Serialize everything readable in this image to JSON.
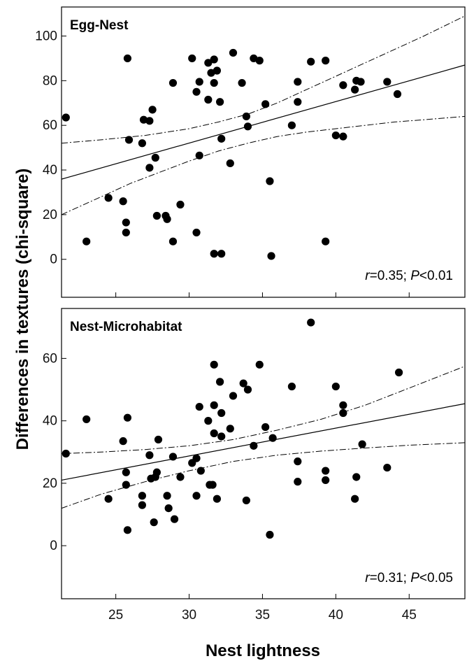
{
  "figure": {
    "ylabel": "Differences in textures (chi-square)",
    "xlabel": "Nest lightness"
  },
  "chart_data": [
    {
      "type": "scatter",
      "title": "Egg-Nest",
      "stat_r": "=0.35; ",
      "stat_p": "<0.01",
      "stat_r_label": "r",
      "stat_p_label": "P",
      "xlim": [
        21.3,
        48.8
      ],
      "ylim": [
        -17,
        113
      ],
      "xticks": [
        25,
        30,
        35,
        40,
        45
      ],
      "yticks": [
        0,
        20,
        40,
        60,
        80,
        100
      ],
      "fit": [
        {
          "x": 21.3,
          "y": 35.9
        },
        {
          "x": 48.8,
          "y": 87
        }
      ],
      "ci_upper": [
        [
          21.3,
          52
        ],
        [
          24,
          53.5
        ],
        [
          27,
          55.5
        ],
        [
          30,
          58.5
        ],
        [
          32,
          61.5
        ],
        [
          34,
          65
        ],
        [
          36,
          70
        ],
        [
          38,
          76
        ],
        [
          40,
          82
        ],
        [
          42,
          88
        ],
        [
          44,
          94
        ],
        [
          46,
          100
        ],
        [
          48.8,
          109
        ]
      ],
      "ci_lower": [
        [
          21.3,
          20
        ],
        [
          24,
          28
        ],
        [
          26,
          34
        ],
        [
          28,
          39
        ],
        [
          30,
          44
        ],
        [
          32,
          48.5
        ],
        [
          34,
          52
        ],
        [
          36,
          55
        ],
        [
          38,
          57
        ],
        [
          40,
          58.5
        ],
        [
          42,
          60
        ],
        [
          44,
          61.5
        ],
        [
          46,
          62.5
        ],
        [
          48.8,
          64
        ]
      ],
      "points": [
        {
          "x": 21.6,
          "y": 63.5
        },
        {
          "x": 23.0,
          "y": 8
        },
        {
          "x": 24.5,
          "y": 27.5
        },
        {
          "x": 25.5,
          "y": 26
        },
        {
          "x": 25.7,
          "y": 16.5
        },
        {
          "x": 25.7,
          "y": 12
        },
        {
          "x": 25.8,
          "y": 90
        },
        {
          "x": 25.9,
          "y": 53.5
        },
        {
          "x": 26.8,
          "y": 52
        },
        {
          "x": 26.9,
          "y": 62.5
        },
        {
          "x": 27.3,
          "y": 62
        },
        {
          "x": 27.3,
          "y": 41
        },
        {
          "x": 27.5,
          "y": 67
        },
        {
          "x": 27.7,
          "y": 45.5
        },
        {
          "x": 27.8,
          "y": 19.5
        },
        {
          "x": 28.4,
          "y": 19.5
        },
        {
          "x": 28.5,
          "y": 18
        },
        {
          "x": 28.9,
          "y": 79
        },
        {
          "x": 28.9,
          "y": 8
        },
        {
          "x": 29.4,
          "y": 24.5
        },
        {
          "x": 30.2,
          "y": 90
        },
        {
          "x": 30.5,
          "y": 75
        },
        {
          "x": 30.5,
          "y": 12
        },
        {
          "x": 30.7,
          "y": 79.5
        },
        {
          "x": 30.7,
          "y": 46.5
        },
        {
          "x": 31.3,
          "y": 71.5
        },
        {
          "x": 31.3,
          "y": 88
        },
        {
          "x": 31.5,
          "y": 83.5
        },
        {
          "x": 31.7,
          "y": 89.5
        },
        {
          "x": 31.7,
          "y": 79
        },
        {
          "x": 31.7,
          "y": 2.5
        },
        {
          "x": 31.9,
          "y": 84.5
        },
        {
          "x": 32.1,
          "y": 70.5
        },
        {
          "x": 32.2,
          "y": 54
        },
        {
          "x": 32.2,
          "y": 2.5
        },
        {
          "x": 32.8,
          "y": 43
        },
        {
          "x": 33.0,
          "y": 92.5
        },
        {
          "x": 33.6,
          "y": 79
        },
        {
          "x": 33.9,
          "y": 64
        },
        {
          "x": 34.0,
          "y": 59.5
        },
        {
          "x": 34.4,
          "y": 90
        },
        {
          "x": 34.8,
          "y": 89
        },
        {
          "x": 35.2,
          "y": 69.5
        },
        {
          "x": 35.5,
          "y": 35
        },
        {
          "x": 35.6,
          "y": 1.5
        },
        {
          "x": 37.0,
          "y": 60
        },
        {
          "x": 37.4,
          "y": 79.5
        },
        {
          "x": 37.4,
          "y": 70.5
        },
        {
          "x": 38.3,
          "y": 88.5
        },
        {
          "x": 39.3,
          "y": 89
        },
        {
          "x": 39.3,
          "y": 8
        },
        {
          "x": 40.0,
          "y": 55.5
        },
        {
          "x": 40.5,
          "y": 78
        },
        {
          "x": 40.5,
          "y": 55
        },
        {
          "x": 41.3,
          "y": 76
        },
        {
          "x": 41.4,
          "y": 80
        },
        {
          "x": 41.7,
          "y": 79.5
        },
        {
          "x": 43.5,
          "y": 79.5
        },
        {
          "x": 44.2,
          "y": 74
        }
      ]
    },
    {
      "type": "scatter",
      "title": "Nest-Microhabitat",
      "stat_r": "=0.31; ",
      "stat_p": "<0.05",
      "stat_r_label": "r",
      "stat_p_label": "P",
      "xlim": [
        21.3,
        48.8
      ],
      "ylim": [
        -17,
        76
      ],
      "xticks": [
        25,
        30,
        35,
        40,
        45
      ],
      "yticks": [
        0,
        20,
        40,
        60
      ],
      "fit": [
        {
          "x": 21.3,
          "y": 21
        },
        {
          "x": 48.8,
          "y": 45.5
        }
      ],
      "ci_upper": [
        [
          21.3,
          29.5
        ],
        [
          24,
          30
        ],
        [
          27,
          30.8
        ],
        [
          30,
          32
        ],
        [
          33,
          34
        ],
        [
          36,
          37
        ],
        [
          39,
          40.5
        ],
        [
          42,
          45
        ],
        [
          45,
          50.5
        ],
        [
          48.8,
          57.5
        ]
      ],
      "ci_lower": [
        [
          21.3,
          12
        ],
        [
          24,
          16.5
        ],
        [
          27,
          20.5
        ],
        [
          30,
          24
        ],
        [
          33,
          27
        ],
        [
          36,
          29
        ],
        [
          39,
          30.3
        ],
        [
          42,
          31.3
        ],
        [
          45,
          32.2
        ],
        [
          48.8,
          33
        ]
      ],
      "points": [
        {
          "x": 21.6,
          "y": 29.5
        },
        {
          "x": 23.0,
          "y": 40.5
        },
        {
          "x": 24.5,
          "y": 15
        },
        {
          "x": 25.5,
          "y": 33.5
        },
        {
          "x": 25.7,
          "y": 23.5
        },
        {
          "x": 25.7,
          "y": 19.5
        },
        {
          "x": 25.8,
          "y": 41
        },
        {
          "x": 25.8,
          "y": 5
        },
        {
          "x": 26.8,
          "y": 16
        },
        {
          "x": 26.8,
          "y": 13
        },
        {
          "x": 27.3,
          "y": 29
        },
        {
          "x": 27.4,
          "y": 21.5
        },
        {
          "x": 27.6,
          "y": 7.5
        },
        {
          "x": 27.7,
          "y": 22
        },
        {
          "x": 27.8,
          "y": 23.5
        },
        {
          "x": 27.9,
          "y": 34
        },
        {
          "x": 28.5,
          "y": 16
        },
        {
          "x": 28.6,
          "y": 12
        },
        {
          "x": 28.9,
          "y": 28.5
        },
        {
          "x": 29.0,
          "y": 8.5
        },
        {
          "x": 29.4,
          "y": 22
        },
        {
          "x": 30.2,
          "y": 26.5
        },
        {
          "x": 30.5,
          "y": 28
        },
        {
          "x": 30.5,
          "y": 16
        },
        {
          "x": 30.7,
          "y": 44.5
        },
        {
          "x": 30.8,
          "y": 24
        },
        {
          "x": 31.3,
          "y": 40
        },
        {
          "x": 31.4,
          "y": 19.5
        },
        {
          "x": 31.6,
          "y": 19.5
        },
        {
          "x": 31.7,
          "y": 45
        },
        {
          "x": 31.7,
          "y": 58
        },
        {
          "x": 31.7,
          "y": 36
        },
        {
          "x": 31.9,
          "y": 15
        },
        {
          "x": 32.1,
          "y": 52.5
        },
        {
          "x": 32.2,
          "y": 42.5
        },
        {
          "x": 32.2,
          "y": 35
        },
        {
          "x": 32.8,
          "y": 37.5
        },
        {
          "x": 33.0,
          "y": 48
        },
        {
          "x": 33.7,
          "y": 52
        },
        {
          "x": 33.9,
          "y": 14.5
        },
        {
          "x": 34.0,
          "y": 50
        },
        {
          "x": 34.4,
          "y": 32
        },
        {
          "x": 34.8,
          "y": 58
        },
        {
          "x": 35.2,
          "y": 38
        },
        {
          "x": 35.5,
          "y": 3.5
        },
        {
          "x": 35.7,
          "y": 34.5
        },
        {
          "x": 37.0,
          "y": 51
        },
        {
          "x": 37.4,
          "y": 27
        },
        {
          "x": 37.4,
          "y": 20.5
        },
        {
          "x": 38.3,
          "y": 71.5
        },
        {
          "x": 39.3,
          "y": 24
        },
        {
          "x": 39.3,
          "y": 21
        },
        {
          "x": 40.0,
          "y": 51
        },
        {
          "x": 40.5,
          "y": 45
        },
        {
          "x": 40.5,
          "y": 42.5
        },
        {
          "x": 41.3,
          "y": 15
        },
        {
          "x": 41.4,
          "y": 22
        },
        {
          "x": 41.8,
          "y": 32.5
        },
        {
          "x": 43.5,
          "y": 25
        },
        {
          "x": 44.3,
          "y": 55.5
        }
      ]
    }
  ]
}
